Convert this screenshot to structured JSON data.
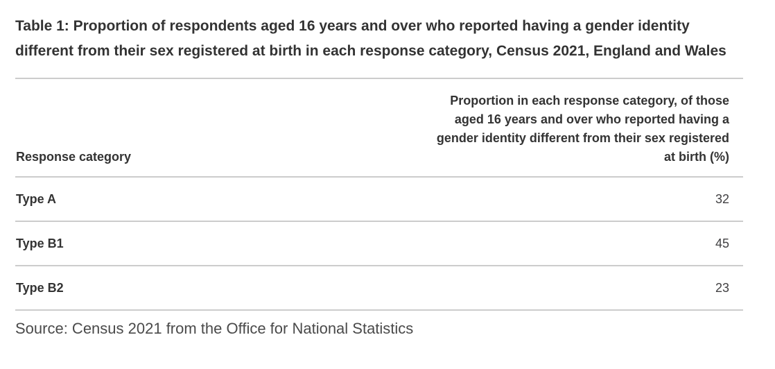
{
  "chart_data": {
    "type": "table",
    "title": "Table 1: Proportion of respondents aged 16 years and over who reported having a gender identity different from their sex registered at birth in each response category, Census 2021, England and Wales",
    "columns": [
      "Response category",
      "Proportion in each response category, of those aged 16 years and over who reported having a gender identity different from their sex registered at birth (%)"
    ],
    "categories": [
      "Type A",
      "Type B1",
      "Type B2"
    ],
    "values": [
      32,
      45,
      23
    ],
    "source": "Source: Census 2021 from the Office for National Statistics",
    "layout": {
      "value_column_alignment": "right",
      "category_column_alignment": "left",
      "grid": "horizontal-rules-only"
    }
  },
  "colors": {
    "title_text": "#333333",
    "header_text": "#333333",
    "category_text": "#333333",
    "value_text": "#414042",
    "source_text": "#4a4a4a",
    "rule": "#cccccc",
    "background": "#ffffff"
  }
}
